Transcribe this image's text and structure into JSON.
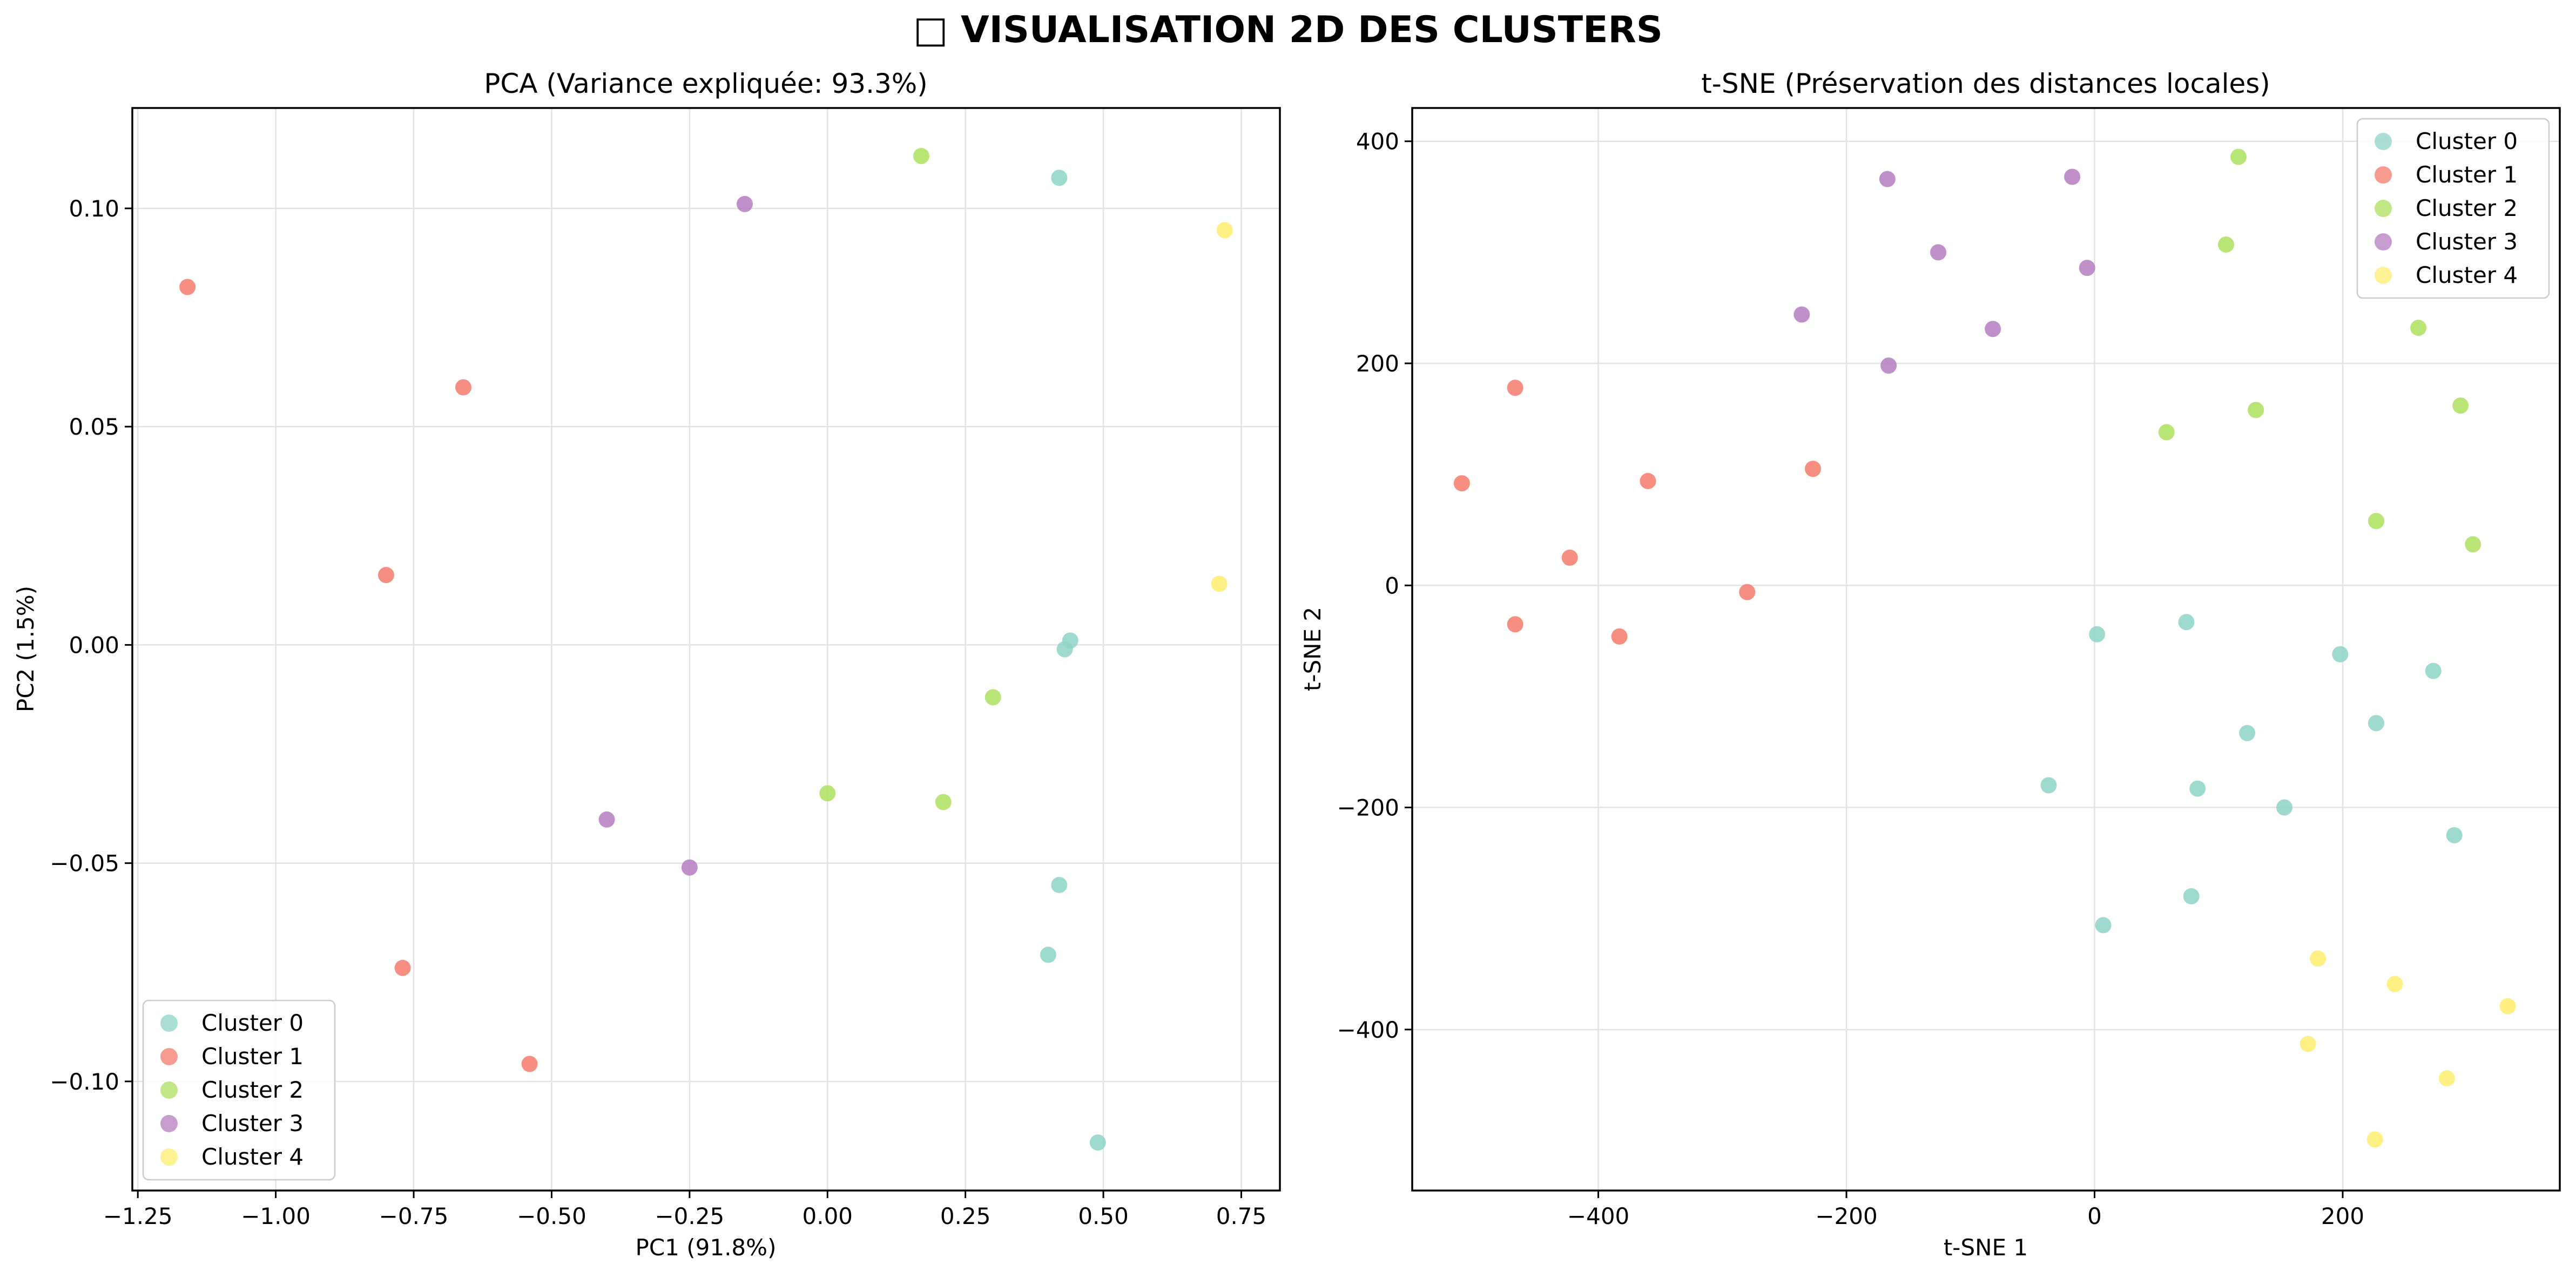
{
  "figure": {
    "suptitle": "□ VISUALISATION 2D DES CLUSTERS"
  },
  "colors": {
    "Cluster 0": "#8dd3c7",
    "Cluster 1": "#f47a6b",
    "Cluster 2": "#addf5e",
    "Cluster 3": "#b47cc0",
    "Cluster 4": "#ffed6f"
  },
  "chart_data": [
    {
      "type": "scatter",
      "title": "PCA (Variance expliquée: 93.3%)",
      "xlabel": "PC1 (91.8%)",
      "ylabel": "PC2 (1.5%)",
      "xlim": [
        -1.26,
        0.82
      ],
      "ylim": [
        -0.125,
        0.123
      ],
      "xticks": [
        -1.25,
        -1.0,
        -0.75,
        -0.5,
        -0.25,
        0.0,
        0.25,
        0.5,
        0.75
      ],
      "xtick_labels": [
        "−1.25",
        "−1.00",
        "−0.75",
        "−0.50",
        "−0.25",
        "0.00",
        "0.25",
        "0.50",
        "0.75"
      ],
      "yticks": [
        -0.1,
        -0.05,
        0.0,
        0.05,
        0.1
      ],
      "ytick_labels": [
        "−0.10",
        "−0.05",
        "0.00",
        "0.05",
        "0.10"
      ],
      "grid": true,
      "legend_position": "lower-left",
      "series": [
        {
          "name": "Cluster 0",
          "points": [
            [
              0.42,
              0.107
            ],
            [
              0.44,
              0.001
            ],
            [
              0.43,
              -0.001
            ],
            [
              0.42,
              -0.055
            ],
            [
              0.4,
              -0.071
            ],
            [
              0.49,
              -0.114
            ]
          ]
        },
        {
          "name": "Cluster 1",
          "points": [
            [
              -1.16,
              0.082
            ],
            [
              -0.66,
              0.059
            ],
            [
              -0.8,
              0.016
            ],
            [
              -0.77,
              -0.074
            ],
            [
              -0.54,
              -0.096
            ]
          ]
        },
        {
          "name": "Cluster 2",
          "points": [
            [
              0.17,
              0.112
            ],
            [
              0.3,
              -0.012
            ],
            [
              0.0,
              -0.034
            ],
            [
              0.21,
              -0.036
            ]
          ]
        },
        {
          "name": "Cluster 3",
          "points": [
            [
              -0.15,
              0.101
            ],
            [
              -0.4,
              -0.04
            ],
            [
              -0.25,
              -0.051
            ]
          ]
        },
        {
          "name": "Cluster 4",
          "points": [
            [
              0.72,
              0.095
            ],
            [
              0.71,
              0.014
            ]
          ]
        }
      ]
    },
    {
      "type": "scatter",
      "title": "t-SNE (Préservation des distances locales)",
      "xlabel": "t-SNE 1",
      "ylabel": "t-SNE 2",
      "xlim": [
        -550,
        375
      ],
      "ylim": [
        -545,
        430
      ],
      "xticks": [
        -400,
        -200,
        0,
        200
      ],
      "xtick_labels": [
        "−400",
        "−200",
        "0",
        "200"
      ],
      "yticks": [
        -400,
        -200,
        0,
        200,
        400
      ],
      "ytick_labels": [
        "−400",
        "−200",
        "0",
        "200",
        "400"
      ],
      "grid": true,
      "legend_position": "upper-right",
      "series": [
        {
          "name": "Cluster 0",
          "points": [
            [
              2,
              -44
            ],
            [
              74,
              -33
            ],
            [
              198,
              -62
            ],
            [
              273,
              -77
            ],
            [
              123,
              -133
            ],
            [
              227,
              -124
            ],
            [
              -37,
              -180
            ],
            [
              83,
              -183
            ],
            [
              153,
              -200
            ],
            [
              290,
              -225
            ],
            [
              78,
              -280
            ],
            [
              7,
              -306
            ]
          ]
        },
        {
          "name": "Cluster 1",
          "points": [
            [
              -467,
              178
            ],
            [
              -510,
              92
            ],
            [
              -360,
              94
            ],
            [
              -227,
              105
            ],
            [
              -423,
              25
            ],
            [
              -467,
              -35
            ],
            [
              -280,
              -6
            ],
            [
              -383,
              -46
            ]
          ]
        },
        {
          "name": "Cluster 2",
          "points": [
            [
              116,
              386
            ],
            [
              106,
              307
            ],
            [
              261,
              232
            ],
            [
              58,
              138
            ],
            [
              130,
              158
            ],
            [
              295,
              162
            ],
            [
              227,
              58
            ],
            [
              305,
              37
            ]
          ]
        },
        {
          "name": "Cluster 3",
          "points": [
            [
              -167,
              366
            ],
            [
              -18,
              368
            ],
            [
              -126,
              300
            ],
            [
              -6,
              286
            ],
            [
              -236,
              244
            ],
            [
              -82,
              231
            ],
            [
              -166,
              198
            ]
          ]
        },
        {
          "name": "Cluster 4",
          "points": [
            [
              180,
              -336
            ],
            [
              242,
              -359
            ],
            [
              333,
              -379
            ],
            [
              172,
              -413
            ],
            [
              284,
              -444
            ],
            [
              226,
              -499
            ]
          ]
        }
      ]
    }
  ]
}
